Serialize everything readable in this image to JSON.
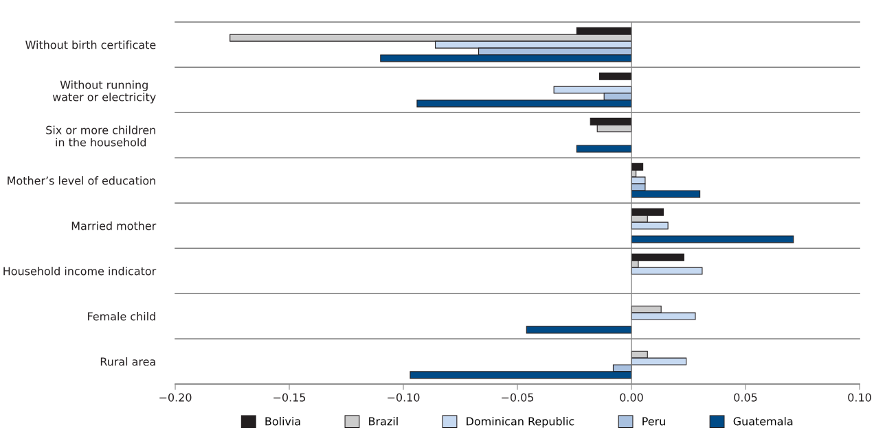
{
  "chart_data": {
    "type": "bar",
    "orientation": "horizontal",
    "categories": [
      "Without birth certificate",
      "Without running\nwater or electricity",
      "Six or more children\nin the household",
      "Mother’s level of education",
      "Married mother",
      "Household income indicator",
      "Female child",
      "Rural area"
    ],
    "series": [
      {
        "name": "Bolivia",
        "color": "#231f20",
        "values": [
          -0.024,
          -0.014,
          -0.018,
          0.005,
          0.014,
          0.023,
          null,
          null
        ]
      },
      {
        "name": "Brazil",
        "color": "#cccccc",
        "values": [
          -0.176,
          null,
          -0.015,
          0.002,
          0.007,
          0.003,
          0.013,
          0.007
        ]
      },
      {
        "name": "Dominican Republic",
        "color": "#c6d9f1",
        "values": [
          -0.086,
          -0.034,
          null,
          0.006,
          0.016,
          0.031,
          0.028,
          0.024
        ]
      },
      {
        "name": "Peru",
        "color": "#a9c1e0",
        "values": [
          -0.067,
          -0.012,
          null,
          0.006,
          null,
          null,
          null,
          -0.008
        ]
      },
      {
        "name": "Guatemala",
        "color": "#004b87",
        "values": [
          -0.11,
          -0.094,
          -0.024,
          0.03,
          0.071,
          null,
          -0.046,
          -0.097
        ]
      }
    ],
    "xlim": [
      -0.2,
      0.1
    ],
    "xticks": [
      {
        "value": -0.2,
        "label": "−0.20"
      },
      {
        "value": -0.15,
        "label": "−0.15"
      },
      {
        "value": -0.1,
        "label": "−0.10"
      },
      {
        "value": -0.05,
        "label": "−0.05"
      },
      {
        "value": 0,
        "label": "0.00"
      },
      {
        "value": 0.05,
        "label": "0.05"
      },
      {
        "value": 0.1,
        "label": "0.10"
      }
    ],
    "ref_lines": [
      {
        "axis": "x",
        "value": 0,
        "color": "#888888"
      }
    ],
    "legend": "bottom",
    "grid": false
  }
}
